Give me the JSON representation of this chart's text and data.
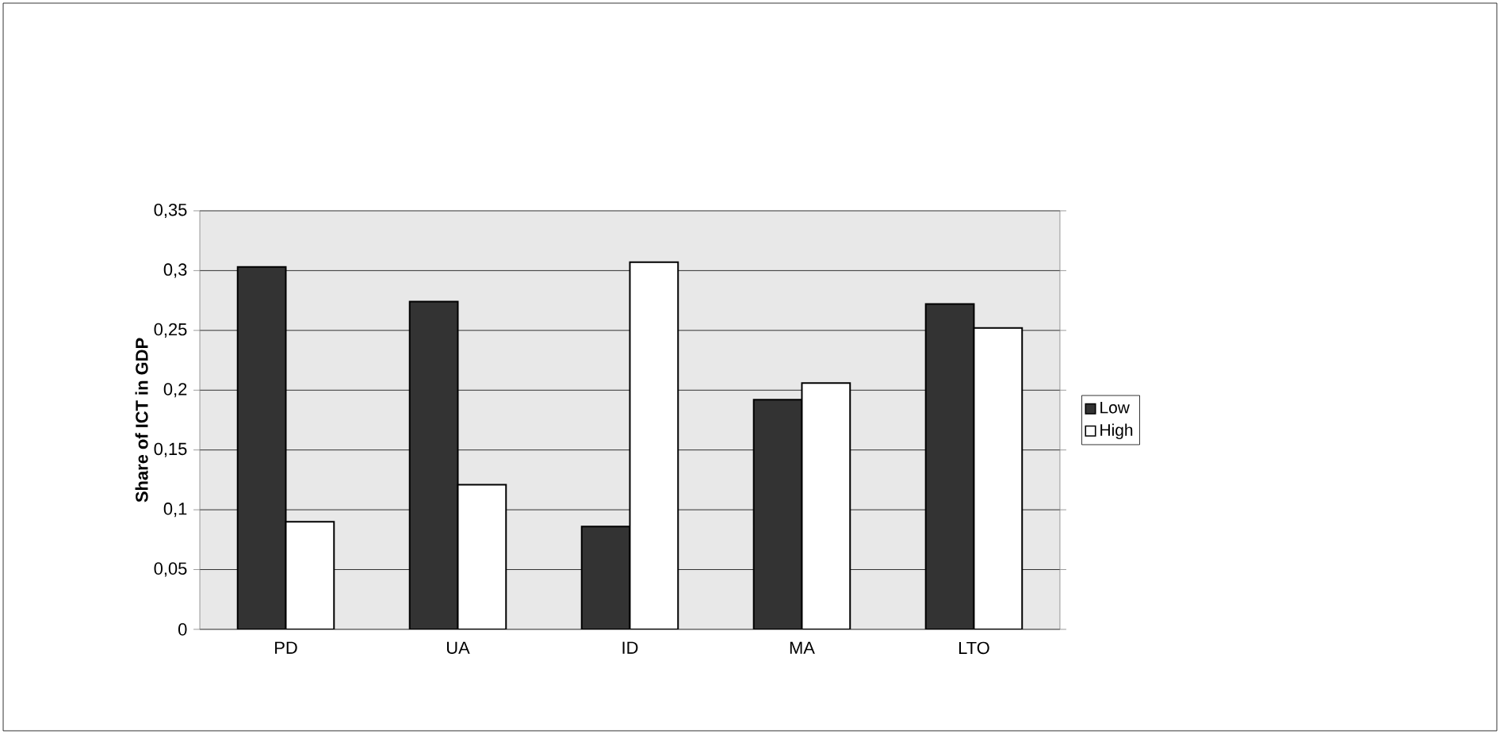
{
  "chart_data": {
    "type": "bar",
    "ylabel": "Share of ICT in GDP",
    "categories": [
      "PD",
      "UA",
      "ID",
      "MA",
      "LTO"
    ],
    "series": [
      {
        "name": "Low",
        "color": "#333333",
        "values": [
          0.303,
          0.274,
          0.086,
          0.192,
          0.272
        ]
      },
      {
        "name": "High",
        "color": "#ffffff",
        "values": [
          0.09,
          0.121,
          0.307,
          0.206,
          0.252
        ]
      }
    ],
    "ylim": [
      0,
      0.35
    ],
    "yticks": [
      0,
      {
        "value": 0.05,
        "label": "0,05"
      },
      {
        "value": 0.1,
        "label": "0,1"
      },
      {
        "value": 0.15,
        "label": "0,15"
      },
      {
        "value": 0.2,
        "label": "0,2"
      },
      {
        "value": 0.25,
        "label": "0,25"
      },
      {
        "value": 0.3,
        "label": "0,3"
      },
      {
        "value": 0.35,
        "label": "0,35"
      }
    ],
    "grid": "y",
    "legend": "right"
  }
}
